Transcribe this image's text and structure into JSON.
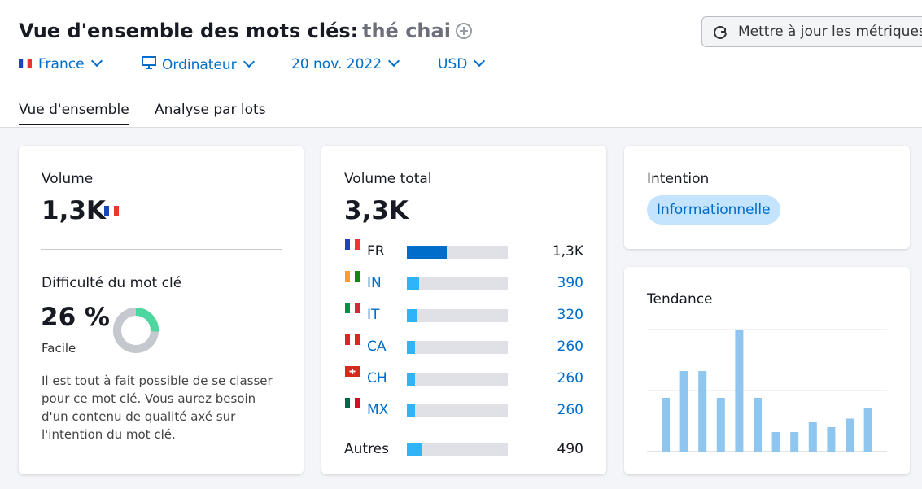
{
  "header": {
    "title": "Vue d'ensemble des mots clés:",
    "keyword": "thé chai",
    "update_button": "Mettre à jour les métriques"
  },
  "filters": [
    "France",
    "Ordinateur",
    "20 nov. 2022",
    "USD"
  ],
  "tabs": [
    "Vue d'ensemble",
    "Analyse par lots"
  ],
  "volume": {
    "title": "Volume",
    "value": 1300,
    "value_label": "1,3K"
  },
  "difficulty": {
    "title": "Difficulté du mot clé",
    "value": 26,
    "value_label": "26 %",
    "level": "Facile",
    "description": "Il est tout à fait possible de se classer pour ce mot clé. Vous aurez besoin d'un contenu de qualité axé sur l'intention du mot clé."
  },
  "total_volume": {
    "title": "Volume total",
    "value": 3300,
    "value_label": "3,3K",
    "countries": [
      {
        "code": "FR",
        "value": 1300,
        "value_label": "1,3K"
      },
      {
        "code": "IN",
        "value": 390
      },
      {
        "code": "IT",
        "value": 320
      },
      {
        "code": "CA",
        "value": 260
      },
      {
        "code": "CH",
        "value": 260
      },
      {
        "code": "MX",
        "value": 260
      }
    ],
    "others": {
      "name": "Autres",
      "value": 490
    }
  },
  "intent": {
    "title": "Intention",
    "label": "Informationnelle"
  },
  "trend": {
    "title": "Tendance",
    "values": [
      44,
      66,
      66,
      44,
      100,
      44,
      16,
      16,
      24,
      20,
      27,
      36
    ]
  }
}
